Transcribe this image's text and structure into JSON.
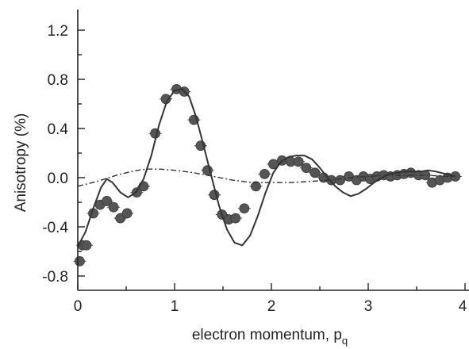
{
  "chart_data": {
    "type": "scatter",
    "title": "",
    "xlabel": "electron momentum, p",
    "xlabel_subscript": "q",
    "ylabel": "Anisotropy (%)",
    "xlim": [
      0,
      4.05
    ],
    "ylim": [
      -0.9,
      1.38
    ],
    "x_ticks": [
      0,
      1,
      2,
      3,
      4
    ],
    "x_tick_labels": [
      "0",
      "1",
      "2",
      "3",
      "4"
    ],
    "y_ticks": [
      1.2,
      0.8,
      0.4,
      0.0,
      -0.4,
      -0.8
    ],
    "y_tick_labels": [
      "1.2",
      "0.8",
      "0.4",
      "0.0",
      "-0.4",
      "-0.8"
    ],
    "grid": false,
    "colors": {
      "markers": "#555555",
      "lines": "#333333",
      "axes": "#222222"
    },
    "series": [
      {
        "style": "markers",
        "points": [
          [
            0.02,
            -0.68
          ],
          [
            0.05,
            -0.55
          ],
          [
            0.09,
            -0.55
          ],
          [
            0.16,
            -0.29
          ],
          [
            0.23,
            -0.22
          ],
          [
            0.3,
            -0.19
          ],
          [
            0.37,
            -0.24
          ],
          [
            0.44,
            -0.33
          ],
          [
            0.51,
            -0.29
          ],
          [
            0.61,
            -0.12
          ],
          [
            0.68,
            -0.07
          ],
          [
            0.8,
            0.36
          ],
          [
            0.91,
            0.64
          ],
          [
            1.02,
            0.72
          ],
          [
            1.1,
            0.7
          ],
          [
            1.2,
            0.47
          ],
          [
            1.27,
            0.26
          ],
          [
            1.34,
            0.06
          ],
          [
            1.41,
            -0.14
          ],
          [
            1.49,
            -0.3
          ],
          [
            1.56,
            -0.34
          ],
          [
            1.63,
            -0.33
          ],
          [
            1.72,
            -0.25
          ],
          [
            1.84,
            -0.07
          ],
          [
            1.93,
            0.03
          ],
          [
            2.02,
            0.11
          ],
          [
            2.11,
            0.14
          ],
          [
            2.2,
            0.13
          ],
          [
            2.28,
            0.13
          ],
          [
            2.36,
            0.08
          ],
          [
            2.45,
            0.04
          ],
          [
            2.54,
            0.0
          ],
          [
            2.62,
            -0.02
          ],
          [
            2.71,
            -0.02
          ],
          [
            2.8,
            0.01
          ],
          [
            2.88,
            -0.02
          ],
          [
            2.95,
            0.01
          ],
          [
            3.02,
            -0.01
          ],
          [
            3.09,
            0.01
          ],
          [
            3.16,
            0.02
          ],
          [
            3.23,
            0.01
          ],
          [
            3.3,
            0.02
          ],
          [
            3.37,
            0.03
          ],
          [
            3.44,
            0.04
          ],
          [
            3.52,
            0.02
          ],
          [
            3.59,
            0.02
          ],
          [
            3.66,
            -0.04
          ],
          [
            3.74,
            -0.02
          ],
          [
            3.82,
            0.0
          ],
          [
            3.9,
            0.01
          ]
        ]
      },
      {
        "style": "solid",
        "points": [
          [
            0.0,
            -0.56
          ],
          [
            0.08,
            -0.44
          ],
          [
            0.16,
            -0.25
          ],
          [
            0.24,
            -0.08
          ],
          [
            0.3,
            -0.01
          ],
          [
            0.36,
            -0.04
          ],
          [
            0.44,
            -0.12
          ],
          [
            0.52,
            -0.16
          ],
          [
            0.6,
            -0.12
          ],
          [
            0.68,
            -0.01
          ],
          [
            0.76,
            0.18
          ],
          [
            0.84,
            0.43
          ],
          [
            0.92,
            0.62
          ],
          [
            1.0,
            0.71
          ],
          [
            1.08,
            0.72
          ],
          [
            1.15,
            0.66
          ],
          [
            1.22,
            0.5
          ],
          [
            1.3,
            0.26
          ],
          [
            1.38,
            0.01
          ],
          [
            1.46,
            -0.23
          ],
          [
            1.54,
            -0.42
          ],
          [
            1.62,
            -0.53
          ],
          [
            1.7,
            -0.55
          ],
          [
            1.78,
            -0.47
          ],
          [
            1.86,
            -0.31
          ],
          [
            1.94,
            -0.12
          ],
          [
            2.02,
            0.04
          ],
          [
            2.1,
            0.13
          ],
          [
            2.18,
            0.17
          ],
          [
            2.26,
            0.18
          ],
          [
            2.34,
            0.18
          ],
          [
            2.42,
            0.15
          ],
          [
            2.5,
            0.08
          ],
          [
            2.58,
            0.0
          ],
          [
            2.66,
            -0.07
          ],
          [
            2.74,
            -0.12
          ],
          [
            2.82,
            -0.15
          ],
          [
            2.9,
            -0.13
          ],
          [
            2.98,
            -0.09
          ],
          [
            3.06,
            -0.04
          ],
          [
            3.14,
            0.0
          ],
          [
            3.22,
            0.03
          ],
          [
            3.3,
            0.04
          ],
          [
            3.38,
            0.05
          ],
          [
            3.46,
            0.05
          ],
          [
            3.54,
            0.05
          ],
          [
            3.62,
            0.06
          ],
          [
            3.7,
            0.05
          ],
          [
            3.8,
            0.03
          ],
          [
            3.9,
            0.01
          ]
        ]
      },
      {
        "style": "dash-dot",
        "points": [
          [
            0.0,
            -0.07
          ],
          [
            0.2,
            -0.03
          ],
          [
            0.4,
            0.02
          ],
          [
            0.55,
            0.05
          ],
          [
            0.7,
            0.07
          ],
          [
            0.85,
            0.07
          ],
          [
            1.0,
            0.06
          ],
          [
            1.2,
            0.04
          ],
          [
            1.4,
            0.01
          ],
          [
            1.6,
            -0.02
          ],
          [
            1.8,
            -0.04
          ],
          [
            2.0,
            -0.04
          ],
          [
            2.2,
            -0.04
          ],
          [
            2.4,
            -0.03
          ],
          [
            2.6,
            -0.02
          ],
          [
            2.8,
            0.0
          ],
          [
            3.0,
            0.01
          ],
          [
            3.2,
            0.02
          ],
          [
            3.4,
            0.02
          ],
          [
            3.6,
            0.02
          ],
          [
            3.8,
            0.01
          ],
          [
            3.9,
            0.01
          ]
        ]
      }
    ]
  }
}
